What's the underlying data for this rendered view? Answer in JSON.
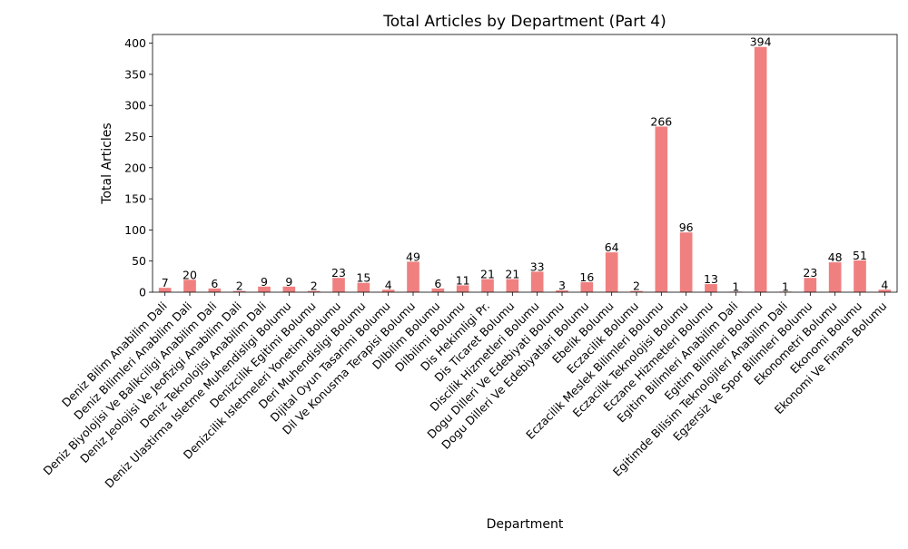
{
  "chart_data": {
    "type": "bar",
    "title": "Total Articles by Department (Part 4)",
    "xlabel": "Department",
    "ylabel": "Total Articles",
    "ylim": [
      0,
      414
    ],
    "yticks": [
      0,
      50,
      100,
      150,
      200,
      250,
      300,
      350,
      400
    ],
    "grid": false,
    "legend": "none",
    "bar_color": "#f08080",
    "categories": [
      "Deniz Bilim Anabilim Dali",
      "Deniz Bilimleri Anabilim Dali",
      "Deniz Biyolojisi Ve Balikciligi Anabilim Dali",
      "Deniz Jeolojisi Ve Jeofizigi Anabilim Dali",
      "Deniz Teknolojisi Anabilim Dali",
      "Deniz Ulastirma Isletme Muhendisligi Bolumu",
      "Denizcilik Egitimi Bolumu",
      "Denizcilik Isletmeleri Yonetimi Bolumu",
      "Deri Muhendisligi Bolumu",
      "Dijital Oyun Tasarimi Bolumu",
      "Dil Ve Konusma Terapisi Bolumu",
      "Dilbilim Bolumu",
      "Dilbilimi Bolumu",
      "Dis Hekimligi Pr.",
      "Dis Ticaret Bolumu",
      "Discilik Hizmetleri Bolumu",
      "Dogu Dilleri Ve Edebiyati Bolumu",
      "Dogu Dilleri Ve Edebiyatlari Bolumu",
      "Ebelik Bolumu",
      "Eczacilik Bolumu",
      "Eczacilik Meslek Bilimleri Bolumu",
      "Eczacilik Teknolojisi Bolumu",
      "Eczane Hizmetleri Bolumu",
      "Egitim Bilimleri Anabilim Dali",
      "Egitim Bilimleri Bolumu",
      "Egitimde Bilisim Teknolojileri Anabilim Dali",
      "Egzersiz Ve Spor Bilimleri Bolumu",
      "Ekonometri Bolumu",
      "Ekonomi Bolumu",
      "Ekonomi Ve Finans Bolumu"
    ],
    "values": [
      7,
      20,
      6,
      2,
      9,
      9,
      2,
      23,
      15,
      4,
      49,
      6,
      11,
      21,
      21,
      33,
      3,
      16,
      64,
      2,
      266,
      96,
      13,
      1,
      394,
      1,
      23,
      48,
      51,
      4
    ]
  }
}
